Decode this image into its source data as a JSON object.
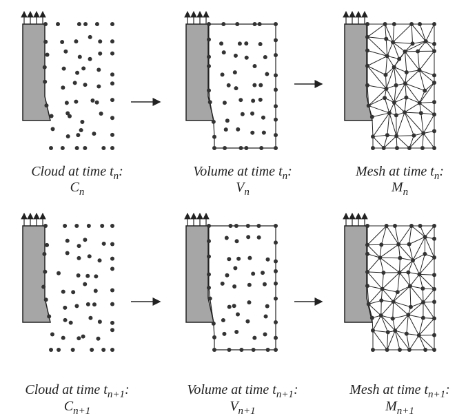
{
  "panels": [
    {
      "title": {
        "words": "Cloud at time",
        "var": "t",
        "sub": "n",
        "end": ":"
      },
      "symbol": {
        "var": "C",
        "sub": "n"
      }
    },
    {
      "title": {
        "words": "Volume at time",
        "var": "t",
        "sub": "n",
        "end": ":"
      },
      "symbol": {
        "var": "V",
        "sub": "n"
      }
    },
    {
      "title": {
        "words": "Mesh at time",
        "var": "t",
        "sub": "n",
        "end": ":"
      },
      "symbol": {
        "var": "M",
        "sub": "n"
      }
    },
    {
      "title": {
        "words": "Cloud at time",
        "var": "t",
        "sub": "n+1",
        "end": ":"
      },
      "symbol": {
        "var": "C",
        "sub": "n+1"
      }
    },
    {
      "title": {
        "words": "Volume at time",
        "var": "t",
        "sub": "n+1",
        "end": ":"
      },
      "symbol": {
        "var": "V",
        "sub": "n+1"
      }
    },
    {
      "title": {
        "words": "Mesh at time",
        "var": "t",
        "sub": "n+1",
        "end": ":"
      },
      "symbol": {
        "var": "M",
        "sub": "n+1"
      }
    }
  ]
}
